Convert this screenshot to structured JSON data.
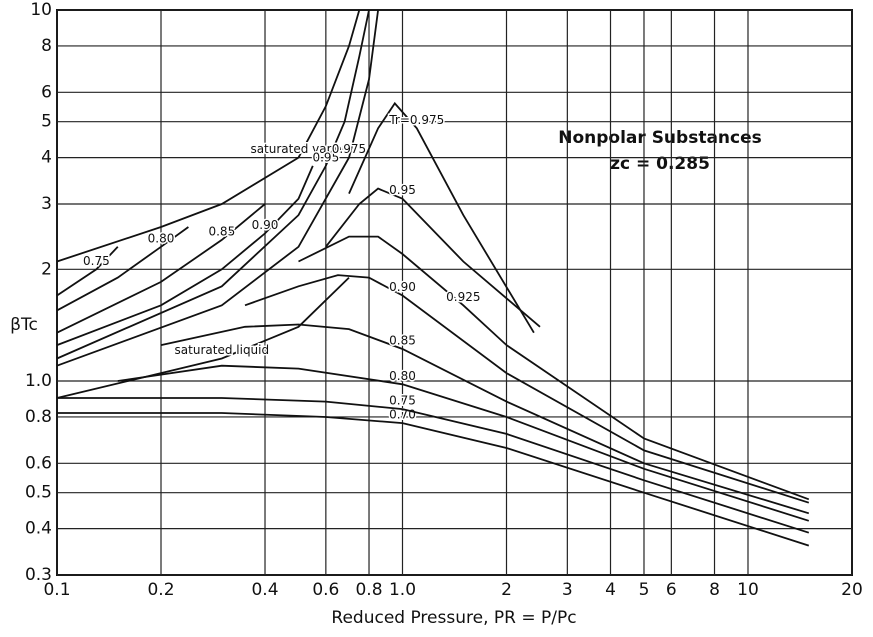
{
  "chart_data": {
    "type": "line",
    "x_label": "Reduced Pressure, PR = P/Pc",
    "y_label": "βTc",
    "annotations": [
      "Nonpolar Substances",
      "zc = 0.285"
    ],
    "log_x": true,
    "log_y": true,
    "grid": true,
    "color": "#111111",
    "xlim": [
      0.1,
      20
    ],
    "ylim": [
      0.3,
      10
    ],
    "xticks": [
      0.1,
      0.2,
      0.4,
      0.6,
      0.8,
      {
        "value": 1,
        "label": "1.0"
      },
      2,
      3,
      4,
      5,
      6,
      8,
      10,
      20
    ],
    "yticks": [
      0.3,
      0.4,
      0.5,
      0.6,
      0.8,
      {
        "value": 1,
        "label": "1.0"
      },
      2,
      3,
      4,
      5,
      6,
      8,
      10
    ],
    "series": [
      {
        "name": "saturated vapor",
        "x": [
          0.1,
          0.2,
          0.3,
          0.5,
          0.6,
          0.7,
          0.75
        ],
        "values": [
          2.1,
          2.6,
          3.0,
          4.0,
          5.5,
          8,
          10
        ]
      },
      {
        "name": "saturated liquid",
        "x": [
          0.1,
          0.2,
          0.3,
          0.5,
          0.7
        ],
        "values": [
          0.9,
          1.05,
          1.15,
          1.4,
          1.9
        ]
      },
      {
        "name": "0.70",
        "x": [
          0.1,
          0.3,
          0.6,
          1,
          2,
          5,
          15
        ],
        "values": [
          0.82,
          0.82,
          0.8,
          0.77,
          0.66,
          0.5,
          0.36
        ]
      },
      {
        "name": "0.75",
        "x": [
          0.1,
          0.3,
          0.6,
          1,
          2,
          5,
          15
        ],
        "values": [
          0.9,
          0.9,
          0.88,
          0.84,
          0.72,
          0.54,
          0.39
        ]
      },
      {
        "name": "0.80",
        "x": [
          0.15,
          0.3,
          0.5,
          1,
          2,
          5,
          15
        ],
        "values": [
          1.0,
          1.1,
          1.08,
          0.98,
          0.8,
          0.58,
          0.42
        ]
      },
      {
        "name": "0.85",
        "x": [
          0.2,
          0.35,
          0.5,
          0.7,
          1,
          2,
          5,
          15
        ],
        "values": [
          1.25,
          1.4,
          1.42,
          1.38,
          1.22,
          0.88,
          0.6,
          0.44
        ]
      },
      {
        "name": "0.90",
        "x": [
          0.35,
          0.5,
          0.65,
          0.8,
          1,
          2,
          5,
          15
        ],
        "values": [
          1.6,
          1.8,
          1.93,
          1.9,
          1.7,
          1.05,
          0.65,
          0.47
        ]
      },
      {
        "name": "0.925",
        "x": [
          0.5,
          0.7,
          0.85,
          1,
          1.5,
          2,
          5,
          15
        ],
        "values": [
          2.1,
          2.45,
          2.45,
          2.2,
          1.6,
          1.25,
          0.7,
          0.48
        ]
      },
      {
        "name": "0.95",
        "x": [
          0.6,
          0.75,
          0.85,
          1,
          1.5,
          2.5
        ],
        "values": [
          2.3,
          3.0,
          3.3,
          3.1,
          2.1,
          1.4
        ]
      },
      {
        "name": "Tr=0.975",
        "x": [
          0.7,
          0.85,
          0.95,
          1.1,
          1.5,
          2.4
        ],
        "values": [
          3.2,
          4.8,
          5.6,
          4.8,
          2.8,
          1.35
        ]
      },
      {
        "name": "0.75",
        "x": [
          0.1,
          0.13,
          0.15
        ],
        "values": [
          1.7,
          2.0,
          2.3
        ]
      },
      {
        "name": "0.80",
        "x": [
          0.1,
          0.15,
          0.2,
          0.24
        ],
        "values": [
          1.55,
          1.9,
          2.3,
          2.6
        ]
      },
      {
        "name": "0.85",
        "x": [
          0.1,
          0.2,
          0.3,
          0.4
        ],
        "values": [
          1.35,
          1.85,
          2.4,
          3.0
        ]
      },
      {
        "name": "0.90",
        "x": [
          0.1,
          0.2,
          0.3,
          0.4,
          0.5,
          0.55
        ],
        "values": [
          1.25,
          1.6,
          2.0,
          2.5,
          3.1,
          3.8
        ]
      },
      {
        "name": "0.95",
        "x": [
          0.1,
          0.3,
          0.5,
          0.6,
          0.68,
          0.75,
          0.8
        ],
        "values": [
          1.15,
          1.8,
          2.8,
          3.8,
          5.0,
          7.5,
          10
        ]
      },
      {
        "name": "0.975",
        "x": [
          0.1,
          0.3,
          0.5,
          0.7,
          0.8,
          0.85
        ],
        "values": [
          1.1,
          1.6,
          2.3,
          4.0,
          6.5,
          10
        ]
      }
    ]
  }
}
